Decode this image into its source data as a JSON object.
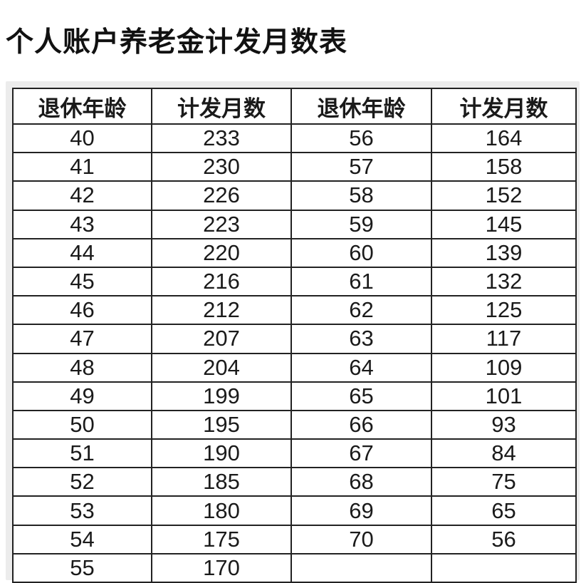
{
  "title": "个人账户养老金计发月数表",
  "table": {
    "headers": [
      "退休年龄",
      "计发月数",
      "退休年龄",
      "计发月数"
    ],
    "rows": [
      [
        "40",
        "233",
        "56",
        "164"
      ],
      [
        "41",
        "230",
        "57",
        "158"
      ],
      [
        "42",
        "226",
        "58",
        "152"
      ],
      [
        "43",
        "223",
        "59",
        "145"
      ],
      [
        "44",
        "220",
        "60",
        "139"
      ],
      [
        "45",
        "216",
        "61",
        "132"
      ],
      [
        "46",
        "212",
        "62",
        "125"
      ],
      [
        "47",
        "207",
        "63",
        "117"
      ],
      [
        "48",
        "204",
        "64",
        "109"
      ],
      [
        "49",
        "199",
        "65",
        "101"
      ],
      [
        "50",
        "195",
        "66",
        "93"
      ],
      [
        "51",
        "190",
        "67",
        "84"
      ],
      [
        "52",
        "185",
        "68",
        "75"
      ],
      [
        "53",
        "180",
        "69",
        "65"
      ],
      [
        "54",
        "175",
        "70",
        "56"
      ],
      [
        "55",
        "170",
        "",
        ""
      ]
    ]
  }
}
